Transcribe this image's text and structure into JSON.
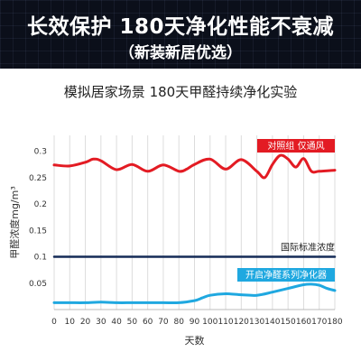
{
  "banner": {
    "title": "长效保护 180天净化性能不衰减",
    "subtitle": "（新装新居优选）"
  },
  "chart_data": {
    "type": "line",
    "title": "模拟居家场景 180天甲醛持续净化实验",
    "xlabel": "天数",
    "ylabel": "甲醛浓度mg/m³",
    "xlim": [
      0,
      180
    ],
    "ylim": [
      0,
      0.33
    ],
    "x_ticks": [
      0,
      10,
      20,
      30,
      40,
      50,
      60,
      70,
      80,
      90,
      100,
      110,
      120,
      130,
      140,
      150,
      160,
      170,
      180
    ],
    "y_ticks": [
      0.05,
      0.1,
      0.15,
      0.2,
      0.25,
      0.3
    ],
    "y_tick_labels": [
      "0.05",
      "0.1",
      "0.15",
      "0.2",
      "0.25",
      "0.3"
    ],
    "grid": "vertical",
    "series": [
      {
        "name": "对照组 仅通风",
        "color": "#e31b23",
        "x": [
          0,
          10,
          20,
          25,
          30,
          40,
          50,
          60,
          70,
          80,
          85,
          90,
          100,
          110,
          120,
          130,
          135,
          140,
          145,
          150,
          155,
          160,
          165,
          170,
          180
        ],
        "values": [
          0.274,
          0.272,
          0.279,
          0.285,
          0.282,
          0.265,
          0.275,
          0.262,
          0.274,
          0.262,
          0.266,
          0.275,
          0.285,
          0.266,
          0.284,
          0.262,
          0.25,
          0.275,
          0.292,
          0.285,
          0.27,
          0.286,
          0.262,
          0.262,
          0.264
        ]
      },
      {
        "name": "开启净醛系列净化器",
        "color": "#1fa8e0",
        "x": [
          0,
          10,
          20,
          30,
          40,
          50,
          60,
          70,
          80,
          90,
          95,
          100,
          110,
          120,
          130,
          140,
          150,
          160,
          165,
          170,
          175,
          180
        ],
        "values": [
          0.013,
          0.013,
          0.013,
          0.014,
          0.013,
          0.013,
          0.013,
          0.013,
          0.013,
          0.017,
          0.022,
          0.027,
          0.03,
          0.028,
          0.027,
          0.033,
          0.04,
          0.047,
          0.048,
          0.046,
          0.04,
          0.036
        ]
      },
      {
        "name": "国际标准浓度",
        "color": "#152b57",
        "x": [
          0,
          180
        ],
        "values": [
          0.1,
          0.1
        ]
      }
    ],
    "annotations": [
      {
        "text": "对照组 仅通风",
        "series": 0,
        "style": "badge"
      },
      {
        "text": "国际标准浓度",
        "series": 2,
        "style": "text"
      },
      {
        "text": "开启净醛系列净化器",
        "series": 1,
        "style": "badge"
      }
    ]
  }
}
